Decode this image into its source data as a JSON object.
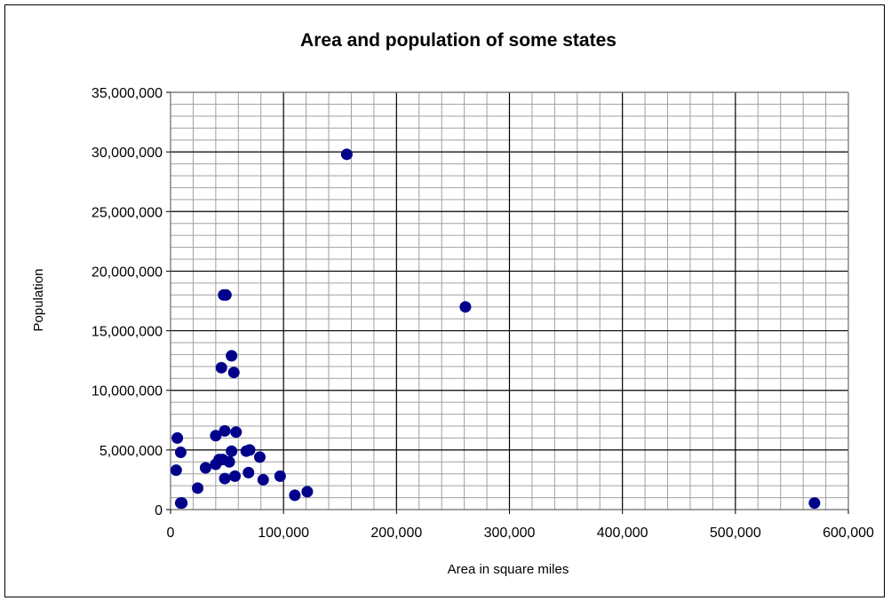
{
  "chart_data": {
    "type": "scatter",
    "title": "Area and population of some states",
    "xlabel": "Area in square miles",
    "ylabel": "Population",
    "xlim": [
      0,
      600000
    ],
    "ylim": [
      0,
      35000000
    ],
    "x_major_step": 100000,
    "x_minor_step": 20000,
    "y_major_step": 5000000,
    "y_minor_step": 1000000,
    "x_ticks": [
      "0",
      "100,000",
      "200,000",
      "300,000",
      "400,000",
      "500,000",
      "600,000"
    ],
    "y_ticks": [
      "0",
      "5,000,000",
      "10,000,000",
      "15,000,000",
      "20,000,000",
      "25,000,000",
      "30,000,000",
      "35,000,000"
    ],
    "grid": true,
    "legend": "none",
    "marker_color": "#00008B",
    "points": [
      {
        "x": 156000,
        "y": 29800000
      },
      {
        "x": 261000,
        "y": 17000000
      },
      {
        "x": 570000,
        "y": 550000
      },
      {
        "x": 47000,
        "y": 18000000
      },
      {
        "x": 49000,
        "y": 18000000
      },
      {
        "x": 54000,
        "y": 12900000
      },
      {
        "x": 45000,
        "y": 11900000
      },
      {
        "x": 56000,
        "y": 11500000
      },
      {
        "x": 6000,
        "y": 6000000
      },
      {
        "x": 9000,
        "y": 4800000
      },
      {
        "x": 5000,
        "y": 3300000
      },
      {
        "x": 9000,
        "y": 550000
      },
      {
        "x": 10000,
        "y": 550000
      },
      {
        "x": 24000,
        "y": 1800000
      },
      {
        "x": 31000,
        "y": 3500000
      },
      {
        "x": 40000,
        "y": 6200000
      },
      {
        "x": 48000,
        "y": 6600000
      },
      {
        "x": 58000,
        "y": 6500000
      },
      {
        "x": 40000,
        "y": 3800000
      },
      {
        "x": 43000,
        "y": 4200000
      },
      {
        "x": 46000,
        "y": 4200000
      },
      {
        "x": 52000,
        "y": 4000000
      },
      {
        "x": 54000,
        "y": 4900000
      },
      {
        "x": 48000,
        "y": 2600000
      },
      {
        "x": 57000,
        "y": 2800000
      },
      {
        "x": 67000,
        "y": 4900000
      },
      {
        "x": 70000,
        "y": 5000000
      },
      {
        "x": 69000,
        "y": 3100000
      },
      {
        "x": 79000,
        "y": 4400000
      },
      {
        "x": 82000,
        "y": 2500000
      },
      {
        "x": 97000,
        "y": 2800000
      },
      {
        "x": 110000,
        "y": 1200000
      },
      {
        "x": 121000,
        "y": 1500000
      }
    ]
  }
}
